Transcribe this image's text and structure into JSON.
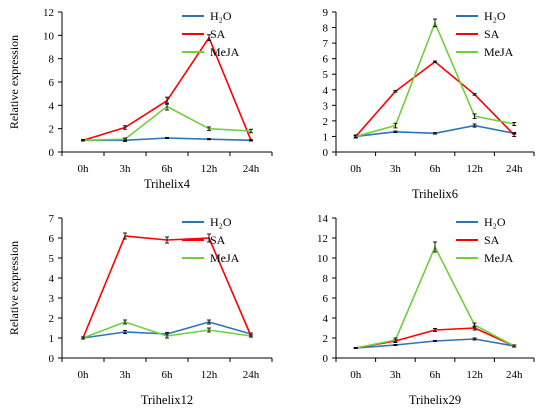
{
  "chart_data": [
    {
      "type": "line",
      "title": "Trihelix4",
      "xlabel": "",
      "ylabel": "Relative expression",
      "categories": [
        "0h",
        "3h",
        "6h",
        "12h",
        "24h"
      ],
      "yticks": [
        "0",
        "2",
        "4",
        "6",
        "8",
        "10",
        "12"
      ],
      "ylim": [
        0,
        12
      ],
      "grid": false,
      "legend_position": "top-right",
      "series": [
        {
          "name": "H₂O",
          "color": "#2e75b6",
          "values": [
            1.0,
            1.0,
            1.2,
            1.1,
            1.0
          ],
          "errors": [
            0.05,
            0.1,
            0.05,
            0.05,
            0.05
          ]
        },
        {
          "name": "SA",
          "color": "#ff0000",
          "values": [
            1.0,
            2.1,
            4.4,
            9.8,
            1.0
          ],
          "errors": [
            0.05,
            0.15,
            0.3,
            0.25,
            0.05
          ]
        },
        {
          "name": "MeJA",
          "color": "#70d03c",
          "values": [
            1.0,
            1.1,
            3.9,
            2.0,
            1.8
          ],
          "errors": [
            0.05,
            0.1,
            0.3,
            0.15,
            0.15
          ]
        }
      ]
    },
    {
      "type": "line",
      "title": "Trihelix6",
      "xlabel": "",
      "ylabel": "",
      "categories": [
        "0h",
        "3h",
        "6h",
        "12h",
        "24h"
      ],
      "yticks": [
        "0",
        "1",
        "2",
        "3",
        "4",
        "5",
        "6",
        "7",
        "8",
        "9"
      ],
      "ylim": [
        0,
        9
      ],
      "grid": false,
      "legend_position": "top-right",
      "series": [
        {
          "name": "H₂O",
          "color": "#2e75b6",
          "values": [
            1.0,
            1.3,
            1.2,
            1.7,
            1.2
          ],
          "errors": [
            0.05,
            0.05,
            0.05,
            0.1,
            0.05
          ]
        },
        {
          "name": "SA",
          "color": "#ff0000",
          "values": [
            1.0,
            3.9,
            5.8,
            3.7,
            1.1
          ],
          "errors": [
            0.05,
            0.05,
            0.05,
            0.05,
            0.1
          ]
        },
        {
          "name": "MeJA",
          "color": "#70d03c",
          "values": [
            1.0,
            1.7,
            8.3,
            2.3,
            1.8
          ],
          "errors": [
            0.1,
            0.15,
            0.25,
            0.15,
            0.1
          ]
        }
      ]
    },
    {
      "type": "line",
      "title": "Trihelix12",
      "xlabel": "",
      "ylabel": "Relative expression",
      "categories": [
        "0h",
        "3h",
        "6h",
        "12h",
        "24h"
      ],
      "yticks": [
        "0",
        "1",
        "2",
        "3",
        "4",
        "5",
        "6",
        "7"
      ],
      "ylim": [
        0,
        7
      ],
      "grid": false,
      "legend_position": "top-right",
      "series": [
        {
          "name": "H₂O",
          "color": "#2e75b6",
          "values": [
            1.0,
            1.3,
            1.2,
            1.8,
            1.2
          ],
          "errors": [
            0.05,
            0.08,
            0.08,
            0.1,
            0.05
          ]
        },
        {
          "name": "SA",
          "color": "#ff0000",
          "values": [
            1.0,
            6.1,
            5.9,
            6.0,
            1.1
          ],
          "errors": [
            0.05,
            0.15,
            0.15,
            0.2,
            0.05
          ]
        },
        {
          "name": "MeJA",
          "color": "#70d03c",
          "values": [
            1.0,
            1.8,
            1.1,
            1.4,
            1.1
          ],
          "errors": [
            0.05,
            0.1,
            0.1,
            0.1,
            0.05
          ]
        }
      ]
    },
    {
      "type": "line",
      "title": "Trihelix29",
      "xlabel": "",
      "ylabel": "",
      "categories": [
        "0h",
        "3h",
        "6h",
        "12h",
        "24h"
      ],
      "yticks": [
        "0",
        "2",
        "4",
        "6",
        "8",
        "10",
        "12",
        "14"
      ],
      "ylim": [
        0,
        14
      ],
      "grid": false,
      "legend_position": "top-right",
      "series": [
        {
          "name": "H₂O",
          "color": "#2e75b6",
          "values": [
            1.0,
            1.3,
            1.7,
            1.9,
            1.2
          ],
          "errors": [
            0.05,
            0.05,
            0.05,
            0.1,
            0.1
          ]
        },
        {
          "name": "SA",
          "color": "#ff0000",
          "values": [
            1.0,
            1.7,
            2.8,
            3.0,
            1.2
          ],
          "errors": [
            0.05,
            0.15,
            0.15,
            0.2,
            0.1
          ]
        },
        {
          "name": "MeJA",
          "color": "#70d03c",
          "values": [
            1.0,
            1.8,
            11.1,
            3.3,
            1.2
          ],
          "errors": [
            0.05,
            0.2,
            0.5,
            0.2,
            0.1
          ]
        }
      ]
    }
  ]
}
